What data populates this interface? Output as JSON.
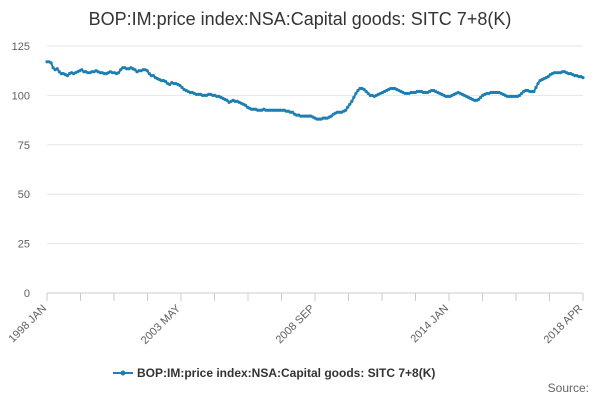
{
  "chart_data": {
    "type": "line",
    "title": "BOP:IM:price index:NSA:Capital goods: SITC 7+8(K)",
    "credit": "Source:",
    "x_tick_labels": [
      "1998 JAN",
      "2003 MAY",
      "2008 SEP",
      "2014 JAN",
      "2018 APR"
    ],
    "y_tick_labels": [
      "0",
      "25",
      "50",
      "75",
      "100",
      "125"
    ],
    "ylim": [
      0,
      125
    ],
    "grid": true,
    "legend_position": "bottom",
    "colors": {
      "series": "#1f7fb3",
      "grid": "#e6e6e6",
      "axis": "#cccccc"
    },
    "series": [
      {
        "name": "BOP:IM:price index:NSA:Capital goods: SITC 7+8(K)",
        "values": [
          117,
          117,
          116.5,
          114,
          113,
          113.5,
          112,
          111,
          111,
          110.5,
          110,
          111,
          111.5,
          111,
          111.5,
          112,
          112.5,
          113,
          112,
          112,
          111.5,
          111.5,
          112,
          112,
          112.5,
          112,
          111.5,
          111.5,
          111,
          111,
          111.5,
          112,
          111.5,
          111.5,
          111,
          111.5,
          113,
          114,
          114,
          113.5,
          113.5,
          114,
          113.5,
          113,
          112,
          112.5,
          112.5,
          113,
          113,
          112.5,
          111,
          110,
          110,
          109,
          108.5,
          108,
          107.5,
          107.5,
          107,
          106,
          105.5,
          106.5,
          106,
          106,
          105.5,
          105,
          104,
          103,
          102.5,
          102,
          101.5,
          101.5,
          101,
          100.5,
          100.5,
          100.5,
          100,
          100,
          100,
          100.5,
          100.5,
          100,
          100,
          99.5,
          99.5,
          99,
          98.5,
          98,
          97.5,
          96.5,
          97,
          97.5,
          97,
          97,
          96.5,
          96,
          95.5,
          95,
          94,
          93.5,
          93,
          93,
          93,
          92.5,
          92.5,
          92.5,
          93,
          92.5,
          92.5,
          92.5,
          92.5,
          92.5,
          92.5,
          92.5,
          92.5,
          92.5,
          92.5,
          92,
          92,
          91.5,
          91.5,
          90.5,
          90,
          90,
          89.5,
          89.5,
          89.5,
          89.5,
          89.5,
          89.5,
          89,
          88.5,
          88,
          88,
          88,
          88.5,
          88.5,
          88.5,
          89,
          89.5,
          90.5,
          91,
          91.5,
          91.5,
          91.5,
          92,
          92.5,
          94,
          95.5,
          97,
          99,
          101,
          102.5,
          103.5,
          103.5,
          103,
          102,
          101,
          100,
          100,
          99.5,
          100,
          100.5,
          101,
          101.5,
          102,
          102.5,
          103,
          103.5,
          103.5,
          103.5,
          103,
          102.5,
          102,
          101.5,
          101,
          101,
          101,
          101.5,
          101.5,
          101.5,
          102,
          102,
          102,
          101.5,
          101.5,
          101.5,
          102,
          102.5,
          102.5,
          102,
          101.5,
          101,
          100.5,
          100,
          99.5,
          99.5,
          99.5,
          100,
          100.5,
          101,
          101.5,
          101,
          100.5,
          100,
          99.5,
          99,
          98.5,
          98,
          97.5,
          97.5,
          98,
          99,
          100,
          100.5,
          101,
          101,
          101.5,
          101.5,
          101.5,
          101.5,
          101.5,
          101,
          100.5,
          100,
          99.5,
          99.5,
          99.5,
          99.5,
          99.5,
          99.5,
          100,
          101,
          102,
          102.5,
          102.5,
          102,
          102,
          102,
          104,
          106,
          107.5,
          108,
          108.5,
          109,
          109.5,
          110.5,
          111,
          111.5,
          111.5,
          111.5,
          111.5,
          112,
          112,
          111.5,
          111,
          111,
          110.5,
          110,
          110,
          109.5,
          109.5,
          109
        ]
      }
    ]
  }
}
